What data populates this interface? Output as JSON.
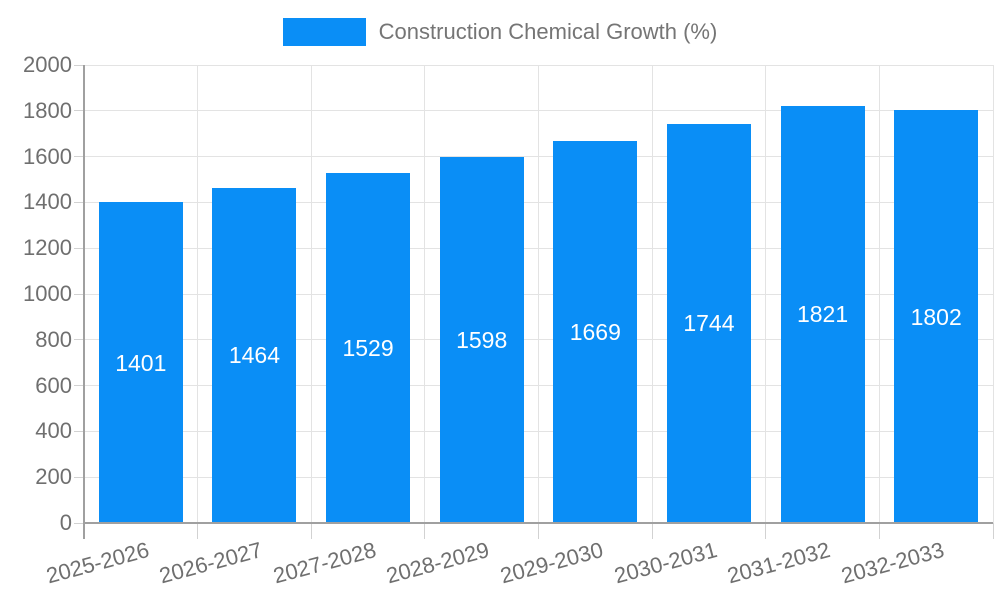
{
  "legend": {
    "label": "Construction Chemical Growth (%)"
  },
  "colors": {
    "bar": "#0a8ef6",
    "grid": "#e3e3e3",
    "axis": "#a0a0a0",
    "tick": "#d2d2d2",
    "axis_text": "#6f6f6f",
    "legend_text": "#757575",
    "bar_label": "#ffffff",
    "background": "#ffffff"
  },
  "chart_data": {
    "type": "bar",
    "title": "",
    "legend": "Construction Chemical Growth (%)",
    "legend_position": "top",
    "categories": [
      "2025-2026",
      "2026-2027",
      "2027-2028",
      "2028-2029",
      "2029-2030",
      "2030-2031",
      "2031-2032",
      "2032-2033"
    ],
    "values": [
      1401,
      1464,
      1529,
      1598,
      1669,
      1744,
      1821,
      1802
    ],
    "bar_labels": [
      "1401",
      "1464",
      "1529",
      "1598",
      "1669",
      "1744",
      "1821",
      "1802"
    ],
    "xlabel": "",
    "ylabel": "",
    "ylim": [
      0,
      2000
    ],
    "yticks": [
      0,
      200,
      400,
      600,
      800,
      1000,
      1200,
      1400,
      1600,
      1800,
      2000
    ],
    "grid": true,
    "xtick_rotation_deg": -15
  }
}
